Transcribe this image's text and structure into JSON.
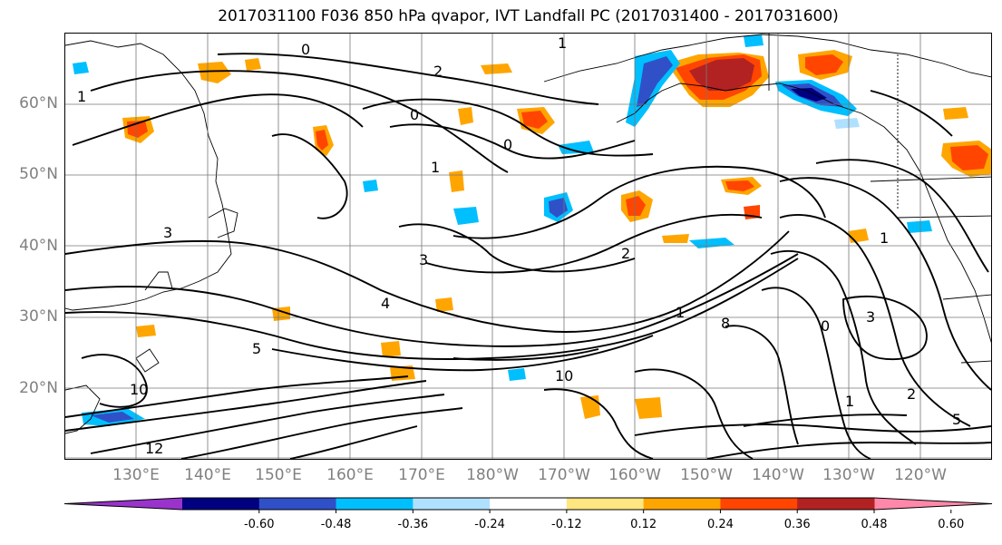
{
  "title": "2017031100 F036 850 hPa qvapor, IVT Landfall PC (2017031400 - 2017031600)",
  "map": {
    "lat_labels": [
      "60°N",
      "50°N",
      "40°N",
      "30°N",
      "20°N"
    ],
    "lon_labels": [
      "130°E",
      "140°E",
      "150°E",
      "160°E",
      "170°E",
      "180°W",
      "170°W",
      "160°W",
      "150°W",
      "140°W",
      "130°W",
      "120°W"
    ],
    "contour_labels": [
      "0",
      "1",
      "2",
      "3",
      "4",
      "5",
      "8",
      "10",
      "12"
    ],
    "gridlines": true
  },
  "colorbar": {
    "levels": [
      "-0.60",
      "-0.48",
      "-0.36",
      "-0.24",
      "-0.12",
      "0.12",
      "0.24",
      "0.36",
      "0.48",
      "0.60"
    ],
    "colors": [
      "#9933cc",
      "#000080",
      "#3050c8",
      "#00bfff",
      "#b0e0ff",
      "#ffffff",
      "#ffe680",
      "#ffa500",
      "#ff4500",
      "#b22222",
      "#ff88aa"
    ],
    "extend": "both"
  }
}
